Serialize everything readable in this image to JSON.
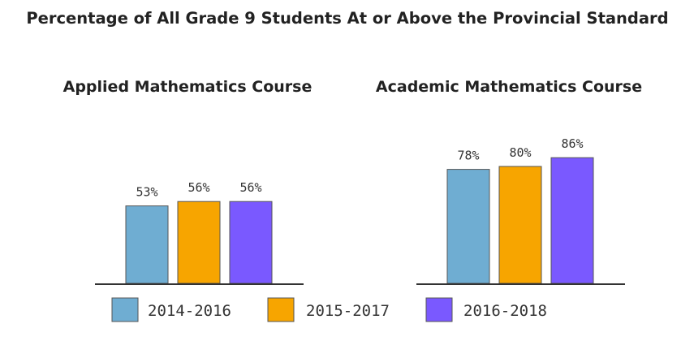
{
  "chart_data": {
    "type": "bar",
    "title": "Percentage of All Grade 9 Students At or Above the Provincial Standard",
    "legend_position": "bottom",
    "grid": false,
    "series_names": [
      "2014-2016",
      "2015-2017",
      "2016-2018"
    ],
    "colors": [
      "#6FADD2",
      "#F7A500",
      "#7A59FF"
    ],
    "ylim": [
      0,
      100
    ],
    "panels": [
      {
        "title": "Applied Mathematics Course",
        "values": [
          53,
          56,
          56
        ],
        "labels": [
          "53%",
          "56%",
          "56%"
        ]
      },
      {
        "title": "Academic Mathematics Course",
        "values": [
          78,
          80,
          86
        ],
        "labels": [
          "78%",
          "80%",
          "86%"
        ]
      }
    ]
  }
}
